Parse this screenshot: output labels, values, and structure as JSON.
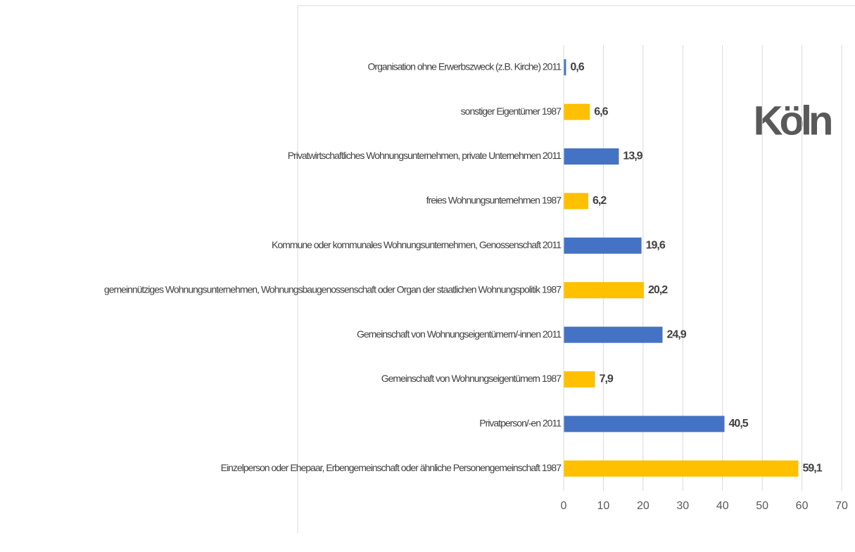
{
  "chart_data": {
    "type": "bar",
    "orientation": "horizontal",
    "title": "Köln",
    "categories": [
      "Organisation ohne Erwerbszweck (z.B. Kirche) 2011",
      "sonstiger Eigentümer 1987",
      "Privatwirtschaftliches Wohnungsunternehmen, private Unternehmen 2011",
      "freies Wohnungsunternehmen 1987",
      "Kommune oder kommunales Wohnungsunternehmen, Genossenschaft 2011",
      "gemeinnütziges Wohnungsunternehmen, Wohnungsbaugenossenschaft oder Organ der staatlichen Wohnungspolitik 1987",
      "Gemeinschaft von Wohnungseigentümern/-innen 2011",
      "Gemeinschaft von Wohnungseigentümern 1987",
      "Privatperson/-en 2011",
      "Einzelperson oder Ehepaar, Erbengemeinschaft oder ähnliche Personengemeinschaft 1987"
    ],
    "values": [
      0.6,
      6.6,
      13.9,
      6.2,
      19.6,
      20.2,
      24.9,
      7.9,
      40.5,
      59.1
    ],
    "value_labels": [
      "0,6",
      "6,6",
      "13,9",
      "6,2",
      "19,6",
      "20,2",
      "24,9",
      "7,9",
      "40,5",
      "59,1"
    ],
    "colors": [
      "#4472c4",
      "#ffc000",
      "#4472c4",
      "#ffc000",
      "#4472c4",
      "#ffc000",
      "#4472c4",
      "#ffc000",
      "#4472c4",
      "#ffc000"
    ],
    "xlim": [
      0,
      70
    ],
    "xticks": [
      0,
      10,
      20,
      30,
      40,
      50,
      60,
      70
    ],
    "grid": true
  }
}
